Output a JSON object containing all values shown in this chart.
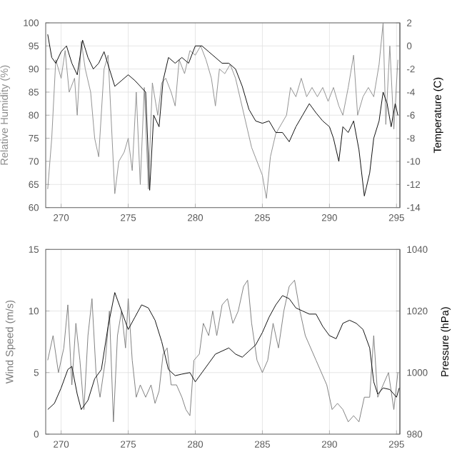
{
  "chart_data": [
    {
      "type": "line",
      "ylabel": "Relative Humidity (%)",
      "y2label": "Temperature (C)",
      "xlim": [
        268.85,
        295.25
      ],
      "xticks": [
        270,
        275,
        280,
        285,
        290,
        295
      ],
      "ylim": [
        60,
        100
      ],
      "yticks": [
        60,
        65,
        70,
        75,
        80,
        85,
        90,
        95,
        100
      ],
      "y2lim": [
        -14,
        2
      ],
      "y2ticks": [
        -14,
        -12,
        -10,
        -8,
        -6,
        -4,
        -2,
        0,
        2
      ],
      "grid": true,
      "series": [
        {
          "color": "#8c8c8c",
          "x": [
            269.0,
            269.3,
            269.6,
            270.0,
            270.3,
            270.6,
            271.0,
            271.2,
            271.5,
            271.8,
            272.2,
            272.5,
            272.8,
            273.2,
            273.5,
            273.8,
            274.0,
            274.3,
            274.7,
            275.0,
            275.3,
            275.6,
            275.9,
            276.2,
            276.5,
            276.8,
            277.2,
            277.5,
            277.8,
            278.2,
            278.5,
            278.8,
            279.2,
            279.6,
            280.0,
            280.4,
            280.8,
            281.2,
            281.5,
            281.8,
            282.2,
            282.6,
            283.0,
            283.4,
            283.8,
            284.2,
            284.6,
            285.0,
            285.3,
            285.6,
            286.0,
            286.4,
            286.8,
            287.1,
            287.5,
            287.9,
            288.3,
            288.7,
            289.1,
            289.5,
            289.9,
            290.3,
            290.7,
            291.0,
            291.4,
            291.8,
            292.1,
            292.5,
            292.9,
            293.3,
            293.7,
            294.0,
            294.2,
            294.5,
            294.8,
            295.1
          ],
          "values": [
            64,
            75,
            92,
            88,
            94,
            85,
            88,
            80,
            96,
            90,
            85,
            75,
            71,
            90,
            93,
            75,
            63,
            70,
            72,
            75,
            68,
            85,
            65,
            86,
            64,
            87,
            80,
            87,
            88,
            85,
            82,
            92,
            89,
            94,
            93,
            95,
            92,
            88,
            82,
            90,
            89,
            91,
            88,
            83,
            78,
            73,
            70,
            67,
            62,
            71,
            76,
            78,
            80,
            86,
            84,
            88,
            84,
            86,
            84,
            86,
            83,
            86,
            82,
            80,
            86,
            93,
            80,
            84,
            86,
            84,
            91,
            100,
            78,
            95,
            77,
            92
          ]
        },
        {
          "color": "#000000",
          "axis": "y2",
          "x": [
            269.0,
            269.3,
            269.6,
            270.0,
            270.4,
            270.8,
            271.2,
            271.6,
            272.0,
            272.4,
            272.8,
            273.2,
            273.6,
            274.0,
            274.5,
            275.0,
            275.5,
            275.9,
            276.3,
            276.6,
            276.9,
            277.3,
            277.6,
            278.0,
            278.5,
            279.0,
            279.5,
            280.0,
            280.5,
            281.0,
            281.5,
            282.0,
            282.5,
            283.0,
            283.5,
            284.0,
            284.5,
            285.0,
            285.5,
            286.0,
            286.5,
            287.0,
            287.5,
            288.0,
            288.5,
            289.0,
            289.5,
            290.0,
            290.3,
            290.7,
            291.0,
            291.4,
            291.8,
            292.2,
            292.6,
            293.0,
            293.3,
            293.7,
            294.0,
            294.3,
            294.6,
            294.9,
            295.1
          ],
          "values": [
            1,
            -1,
            -1.5,
            -0.5,
            0,
            -1.5,
            -2.5,
            0.5,
            -1,
            -2,
            -1.5,
            -0.5,
            -2,
            -3.5,
            -3,
            -2.5,
            -3,
            -3.5,
            -4,
            -12.5,
            -6,
            -7,
            -3,
            -1,
            -1.5,
            -1,
            -1.5,
            0,
            0,
            -0.5,
            -1,
            -1.5,
            -1.5,
            -2,
            -3.5,
            -5.5,
            -6.5,
            -6.7,
            -6.5,
            -7.5,
            -7.5,
            -8.3,
            -7,
            -6,
            -5,
            -5.8,
            -6.5,
            -7,
            -8,
            -10,
            -7,
            -7.5,
            -6.5,
            -9,
            -13,
            -11,
            -8,
            -6.5,
            -4,
            -5,
            -7,
            -5,
            -6
          ]
        }
      ]
    },
    {
      "type": "line",
      "ylabel": "Wind Speed (m/s)",
      "y2label": "Pressure (hPa)",
      "xlim": [
        268.85,
        295.25
      ],
      "xticks": [
        270,
        275,
        280,
        285,
        290,
        295
      ],
      "ylim": [
        0,
        15
      ],
      "yticks": [
        0,
        5,
        10,
        15
      ],
      "y2lim": [
        980,
        1040
      ],
      "y2ticks": [
        980,
        1000,
        1020,
        1040
      ],
      "grid": true,
      "series": [
        {
          "color": "#7a7a7a",
          "x": [
            269.0,
            269.4,
            269.8,
            270.2,
            270.5,
            270.8,
            271.1,
            271.4,
            271.7,
            272.0,
            272.3,
            272.6,
            272.9,
            273.3,
            273.6,
            273.9,
            274.2,
            274.5,
            274.8,
            275.0,
            275.3,
            275.6,
            275.9,
            276.3,
            276.7,
            277.0,
            277.3,
            277.6,
            277.9,
            278.2,
            278.6,
            279.0,
            279.3,
            279.6,
            279.9,
            280.3,
            280.6,
            281.0,
            281.3,
            281.6,
            282.0,
            282.4,
            282.8,
            283.2,
            283.6,
            283.9,
            284.2,
            284.6,
            285.0,
            285.4,
            285.8,
            286.2,
            286.6,
            287.0,
            287.4,
            287.8,
            288.2,
            288.6,
            289.0,
            289.4,
            289.8,
            290.2,
            290.6,
            291.0,
            291.4,
            291.8,
            292.2,
            292.6,
            293.0,
            293.3,
            293.6,
            294.0,
            294.4,
            294.8,
            295.1
          ],
          "values": [
            6,
            8,
            5,
            7,
            10.5,
            4,
            9,
            6,
            2,
            8,
            11,
            5,
            3,
            6,
            10,
            1,
            8,
            10,
            7,
            11,
            6,
            3,
            4,
            3,
            4,
            2.5,
            3.5,
            6.5,
            7,
            4,
            4,
            3,
            2,
            1.5,
            6,
            6.5,
            9,
            8,
            10,
            8,
            10.5,
            11,
            9,
            10,
            12,
            12.5,
            9,
            6,
            5,
            6,
            9,
            7,
            10,
            12,
            12.5,
            10,
            8,
            7,
            6,
            5,
            4,
            2,
            2.5,
            2,
            1,
            1.5,
            1,
            3,
            3,
            8,
            3,
            4,
            5,
            2,
            5
          ]
        },
        {
          "color": "#000000",
          "axis": "y2",
          "x": [
            269.0,
            269.5,
            270.0,
            270.5,
            270.8,
            271.2,
            271.5,
            272.0,
            272.5,
            273.0,
            273.5,
            274.0,
            274.5,
            275.0,
            275.5,
            276.0,
            276.5,
            277.0,
            277.5,
            278.0,
            278.5,
            279.0,
            279.6,
            280.0,
            280.5,
            281.0,
            281.5,
            282.0,
            282.5,
            283.0,
            283.5,
            284.0,
            284.5,
            285.0,
            285.5,
            286.0,
            286.5,
            287.0,
            287.5,
            288.0,
            288.5,
            289.0,
            289.5,
            290.0,
            290.5,
            291.0,
            291.5,
            292.0,
            292.5,
            293.0,
            293.3,
            293.6,
            294.0,
            294.5,
            295.0,
            295.2
          ],
          "values": [
            988,
            990,
            995,
            1001,
            1002,
            993,
            988,
            991,
            998,
            1001,
            1015,
            1026,
            1020,
            1014,
            1018,
            1022,
            1021,
            1017,
            1010,
            1001,
            999,
            999.5,
            1000,
            997,
            1000,
            1003,
            1006,
            1007,
            1008,
            1006,
            1005,
            1007,
            1009,
            1013,
            1018,
            1022,
            1025,
            1024,
            1021,
            1020,
            1019,
            1019,
            1015,
            1012,
            1011,
            1016,
            1017,
            1016,
            1014,
            1008,
            997,
            993,
            995,
            994.5,
            992,
            995
          ]
        }
      ]
    }
  ]
}
